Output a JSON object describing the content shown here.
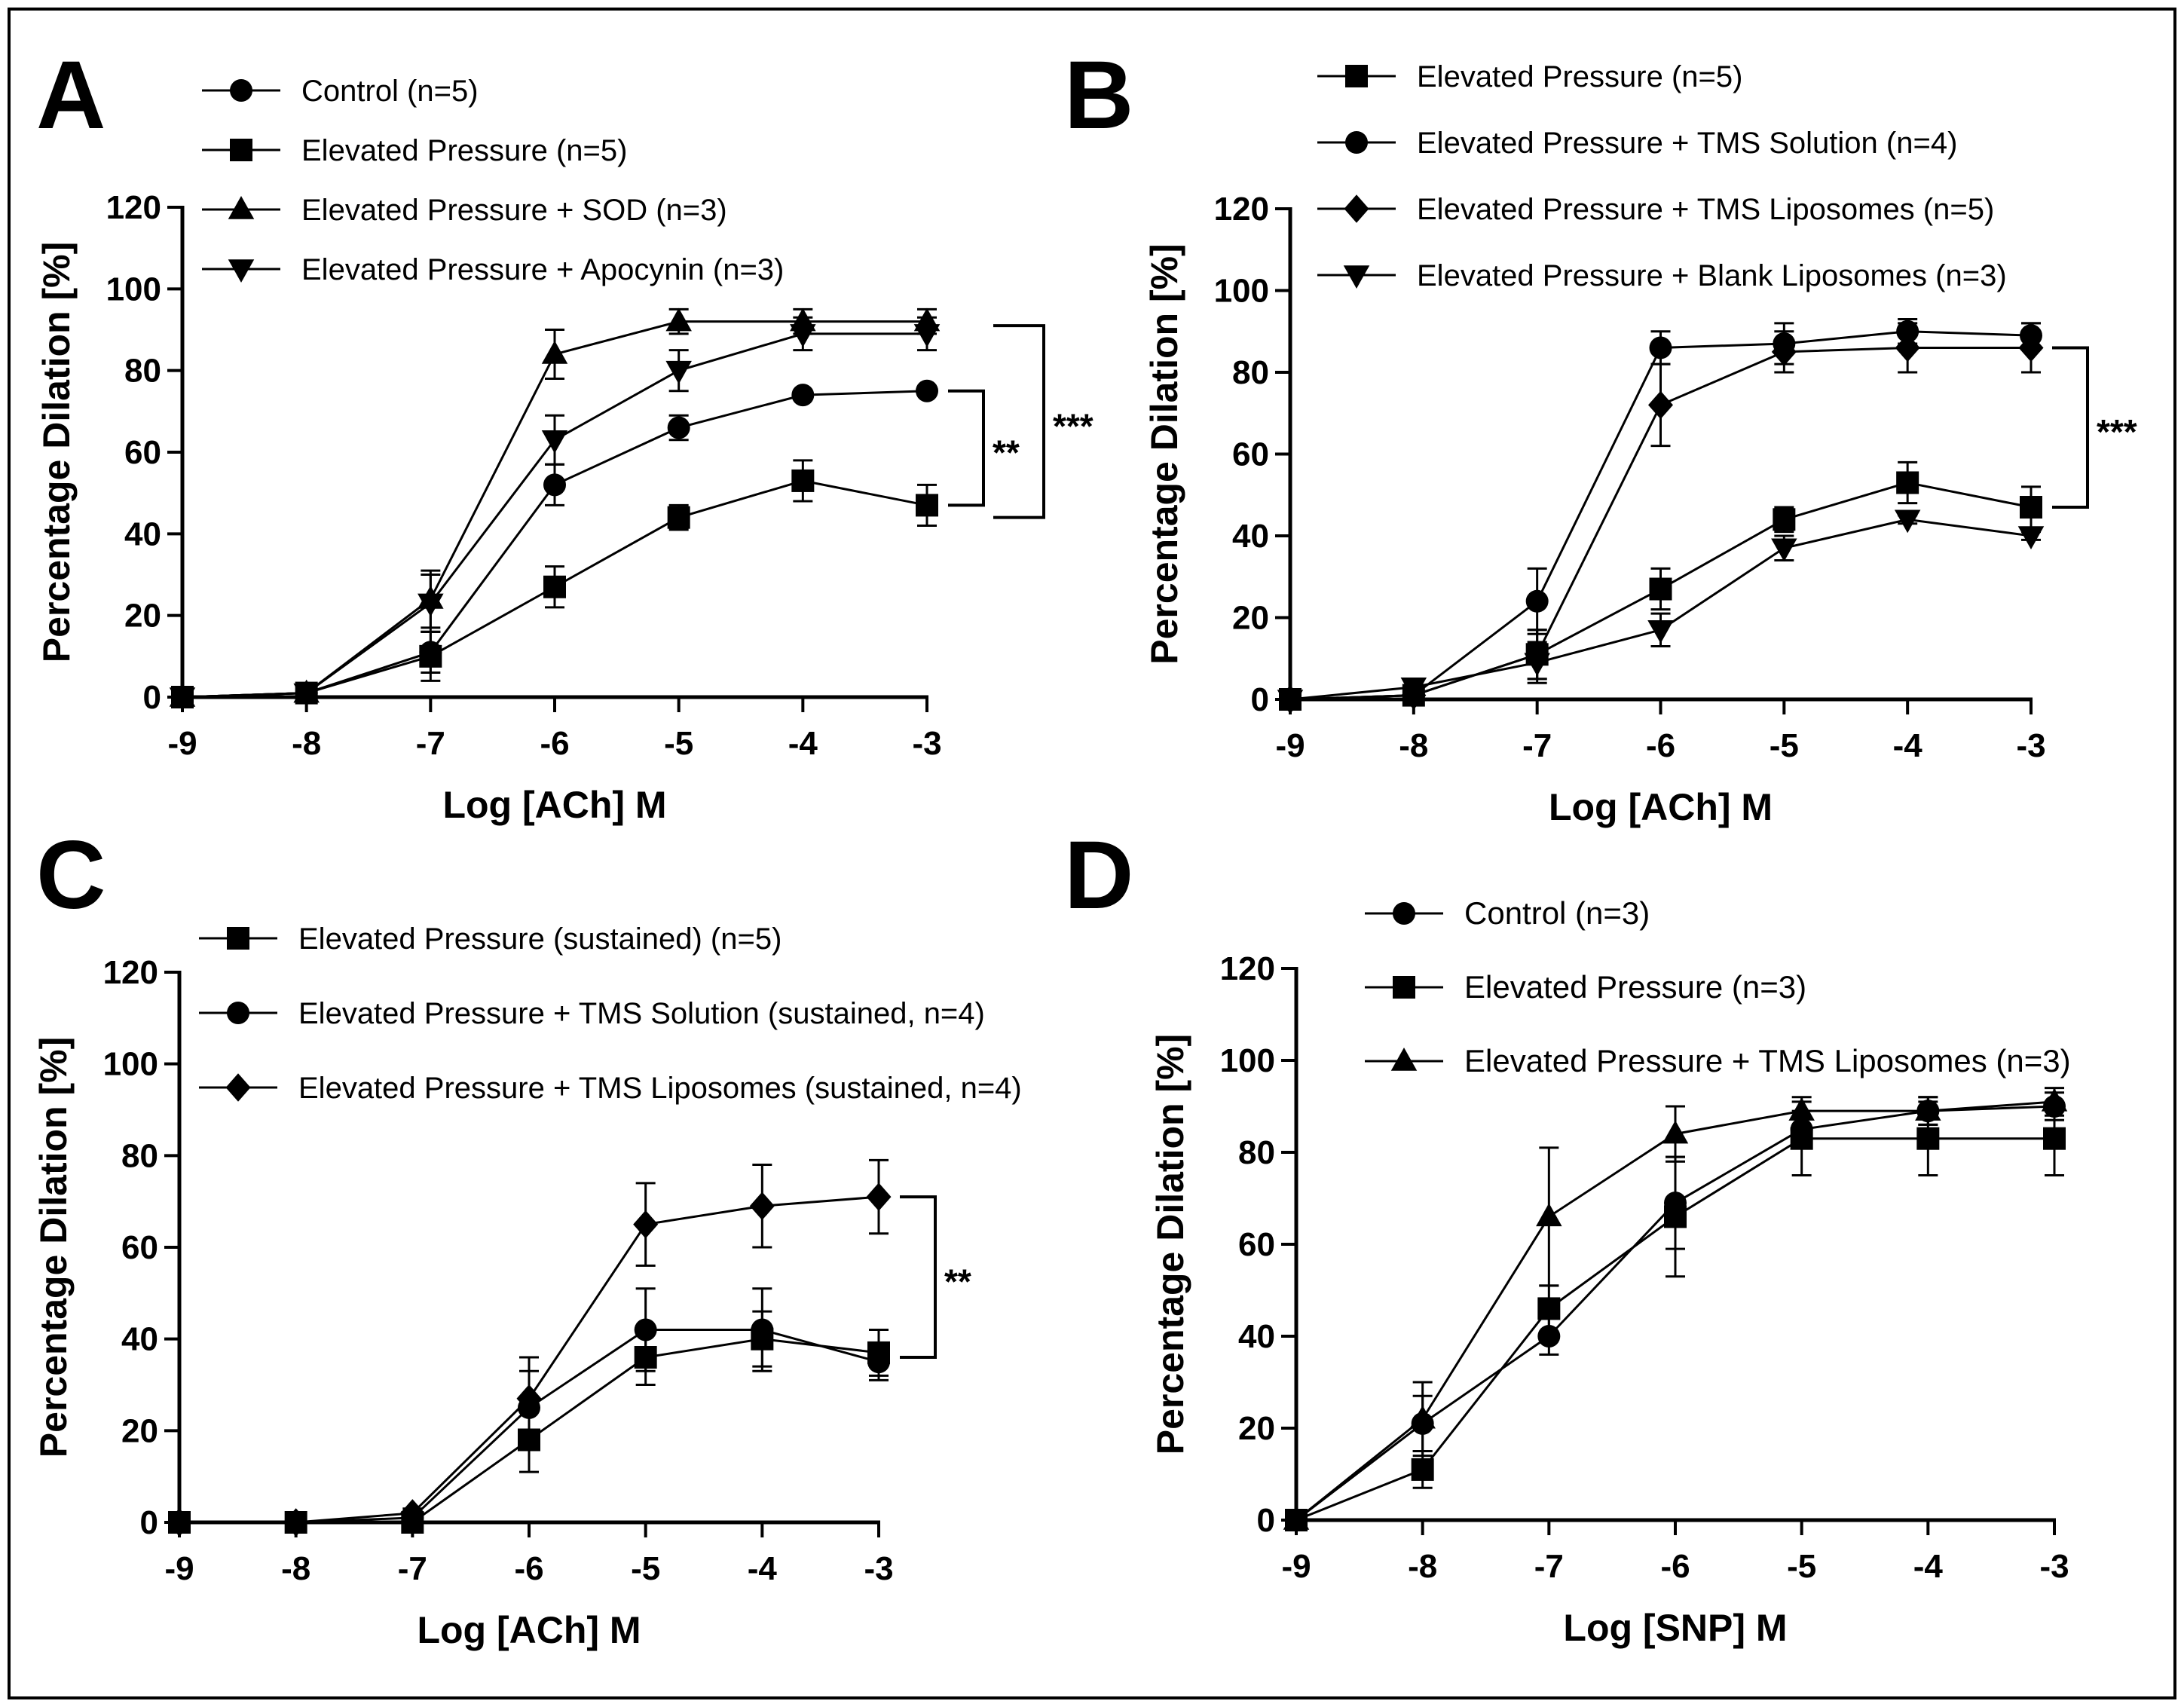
{
  "figure": {
    "panels": [
      "A",
      "B",
      "C",
      "D"
    ]
  },
  "chart_data": [
    {
      "panel": "A",
      "type": "line",
      "xlabel": "Log [ACh] M",
      "ylabel": "Percentage Dilation [%]",
      "xlim": [
        -9,
        -3
      ],
      "ylim": [
        0,
        120
      ],
      "x_ticks": [
        -9,
        -8,
        -7,
        -6,
        -5,
        -4,
        -3
      ],
      "y_ticks": [
        0,
        20,
        40,
        60,
        80,
        100,
        120
      ],
      "legend_position": "top",
      "x": [
        -9,
        -8,
        -7,
        -6,
        -5,
        -4,
        -3
      ],
      "series": [
        {
          "name": "Control (n=5)",
          "marker": "circle",
          "values": [
            0,
            1,
            11,
            52,
            66,
            74,
            75
          ],
          "errors": [
            0,
            1,
            5,
            5,
            3,
            1,
            1
          ]
        },
        {
          "name": "Elevated Pressure (n=5)",
          "marker": "square",
          "values": [
            0,
            1,
            10,
            27,
            44,
            53,
            47
          ],
          "errors": [
            0,
            1,
            6,
            5,
            3,
            5,
            5
          ]
        },
        {
          "name": "Elevated Pressure + SOD (n=3)",
          "marker": "triangle-up",
          "values": [
            0,
            1,
            24,
            84,
            92,
            92,
            92
          ],
          "errors": [
            0,
            1,
            7,
            6,
            3,
            3,
            3
          ]
        },
        {
          "name": "Elevated Pressure + Apocynin (n=3)",
          "marker": "triangle-down",
          "values": [
            0,
            1,
            23,
            63,
            80,
            89,
            89
          ],
          "errors": [
            0,
            1,
            7,
            6,
            5,
            4,
            4
          ]
        }
      ],
      "annotations": [
        {
          "text": "**",
          "from": 75,
          "to": 47
        },
        {
          "text": "***",
          "from": 91,
          "to": 44
        }
      ]
    },
    {
      "panel": "B",
      "type": "line",
      "xlabel": "Log [ACh] M",
      "ylabel": "Percentage Dilation [%]",
      "xlim": [
        -9,
        -3
      ],
      "ylim": [
        0,
        120
      ],
      "x_ticks": [
        -9,
        -8,
        -7,
        -6,
        -5,
        -4,
        -3
      ],
      "y_ticks": [
        0,
        20,
        40,
        60,
        80,
        100,
        120
      ],
      "legend_position": "top",
      "x": [
        -9,
        -8,
        -7,
        -6,
        -5,
        -4,
        -3
      ],
      "series": [
        {
          "name": "Elevated Pressure (n=5)",
          "marker": "square",
          "values": [
            0,
            1,
            11,
            27,
            44,
            53,
            47
          ],
          "errors": [
            0,
            1,
            6,
            5,
            3,
            5,
            5
          ]
        },
        {
          "name": "Elevated Pressure + TMS Solution (n=4)",
          "marker": "circle",
          "values": [
            0,
            1,
            24,
            86,
            87,
            90,
            89
          ],
          "errors": [
            0,
            1,
            8,
            4,
            5,
            3,
            3
          ]
        },
        {
          "name": "Elevated Pressure + TMS Liposomes (n=5)",
          "marker": "diamond",
          "values": [
            0,
            1,
            11,
            72,
            85,
            86,
            86
          ],
          "errors": [
            0,
            1,
            6,
            10,
            5,
            6,
            6
          ]
        },
        {
          "name": "Elevated Pressure + Blank Liposomes (n=3)",
          "marker": "triangle-down",
          "values": [
            0,
            3,
            9,
            17,
            37,
            44,
            40
          ],
          "errors": [
            0,
            2,
            5,
            4,
            3,
            1,
            1
          ]
        }
      ],
      "annotations": [
        {
          "text": "***",
          "from": 86,
          "to": 47
        }
      ]
    },
    {
      "panel": "C",
      "type": "line",
      "xlabel": "Log [ACh] M",
      "ylabel": "Percentage Dilation [%]",
      "xlim": [
        -9,
        -3
      ],
      "ylim": [
        0,
        120
      ],
      "x_ticks": [
        -9,
        -8,
        -7,
        -6,
        -5,
        -4,
        -3
      ],
      "y_ticks": [
        0,
        20,
        40,
        60,
        80,
        100,
        120
      ],
      "legend_position": "top",
      "x": [
        -9,
        -8,
        -7,
        -6,
        -5,
        -4,
        -3
      ],
      "series": [
        {
          "name": "Elevated Pressure (sustained) (n=5)",
          "marker": "square",
          "values": [
            0,
            0,
            0,
            18,
            36,
            40,
            37
          ],
          "errors": [
            0,
            0,
            1,
            7,
            6,
            6,
            5
          ]
        },
        {
          "name": "Elevated Pressure + TMS Solution (sustained, n=4)",
          "marker": "circle",
          "values": [
            0,
            0,
            1,
            25,
            42,
            42,
            35
          ],
          "errors": [
            0,
            0,
            1,
            8,
            9,
            9,
            4
          ]
        },
        {
          "name": "Elevated Pressure + TMS Liposomes (sustained, n=4)",
          "marker": "diamond",
          "values": [
            0,
            0,
            2,
            27,
            65,
            69,
            71
          ],
          "errors": [
            0,
            0,
            1,
            9,
            9,
            9,
            8
          ]
        }
      ],
      "annotations": [
        {
          "text": "**",
          "from": 71,
          "to": 36
        }
      ]
    },
    {
      "panel": "D",
      "type": "line",
      "xlabel": "Log [SNP] M",
      "ylabel": "Percentage Dilation [%]",
      "xlim": [
        -9,
        -3
      ],
      "ylim": [
        0,
        120
      ],
      "x_ticks": [
        -9,
        -8,
        -7,
        -6,
        -5,
        -4,
        -3
      ],
      "y_ticks": [
        0,
        20,
        40,
        60,
        80,
        100,
        120
      ],
      "legend_position": "top",
      "x": [
        -9,
        -8,
        -7,
        -6,
        -5,
        -4,
        -3
      ],
      "series": [
        {
          "name": "Control (n=3)",
          "marker": "circle",
          "values": [
            0,
            21,
            40,
            69,
            85,
            89,
            90
          ],
          "errors": [
            0,
            6,
            4,
            10,
            4,
            3,
            3
          ]
        },
        {
          "name": "Elevated Pressure (n=3)",
          "marker": "square",
          "values": [
            0,
            11,
            46,
            66,
            83,
            83,
            83
          ],
          "errors": [
            0,
            4,
            5,
            13,
            8,
            8,
            8
          ]
        },
        {
          "name": "Elevated Pressure + TMS Liposomes (n=3)",
          "marker": "triangle-up",
          "values": [
            0,
            22,
            66,
            84,
            89,
            89,
            91
          ],
          "errors": [
            0,
            8,
            15,
            6,
            3,
            3,
            3
          ]
        }
      ],
      "annotations": []
    }
  ]
}
